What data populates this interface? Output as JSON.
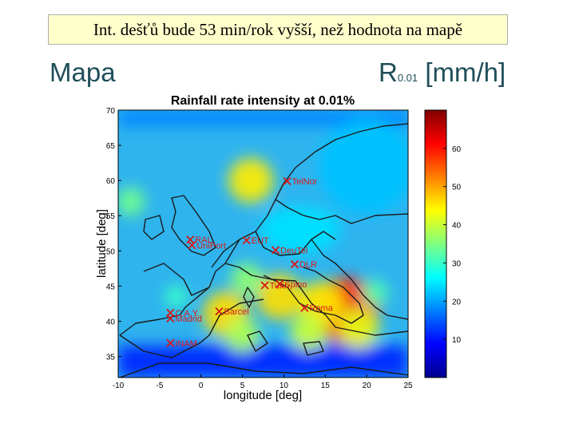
{
  "banner": {
    "text": "Int. dešťů bude 53 min/rok vyšší, než hodnota na mapě"
  },
  "heading_left": "Mapa",
  "heading_right": {
    "main": "R",
    "sub": "0.01",
    "unit": "[mm/h]"
  },
  "colors": {
    "low": "#0a1a9a",
    "mid": "#2fd4f0",
    "high": "#ffe000",
    "max": "#d01000",
    "marker": "#d81a1a",
    "heading": "#1f4e5a"
  },
  "chart_data": {
    "type": "heatmap",
    "title": "Rainfall rate intensity at 0.01%",
    "xlabel": "longitude [deg]",
    "ylabel": "latitude [deg]",
    "xlim": [
      -10,
      25
    ],
    "ylim": [
      32,
      70
    ],
    "x_ticks": [
      "-10",
      "-5",
      "0",
      "5",
      "10",
      "15",
      "20",
      "25"
    ],
    "y_ticks": [
      "35",
      "40",
      "45",
      "50",
      "55",
      "60",
      "65",
      "70"
    ],
    "colorbar": {
      "range": [
        0,
        70
      ],
      "ticks": [
        "10",
        "20",
        "30",
        "40",
        "50",
        "60"
      ]
    },
    "stations": [
      {
        "label": "TelNor",
        "lon": 10.4,
        "lat": 59.9
      },
      {
        "label": "RAL",
        "lon": -1.3,
        "lat": 51.6
      },
      {
        "label": "UniPort",
        "lon": -1.1,
        "lat": 50.8
      },
      {
        "label": "EUT",
        "lon": 5.5,
        "lat": 51.5
      },
      {
        "label": "DeuTel",
        "lon": 9.0,
        "lat": 50.1
      },
      {
        "label": "DLR",
        "lon": 11.3,
        "lat": 48.1
      },
      {
        "label": "Turin",
        "lon": 7.7,
        "lat": 45.1
      },
      {
        "label": "Spino",
        "lon": 9.5,
        "lat": 45.3
      },
      {
        "label": "C.A.Y.",
        "lon": -3.7,
        "lat": 41.2
      },
      {
        "label": "Madrid",
        "lon": -3.7,
        "lat": 40.4
      },
      {
        "label": "Barcel",
        "lon": 2.2,
        "lat": 41.4
      },
      {
        "label": "Roma",
        "lon": 12.5,
        "lat": 41.9
      },
      {
        "label": "INAM",
        "lon": -3.7,
        "lat": 36.9
      }
    ],
    "hotspots": [
      {
        "lon": 17.5,
        "lat": 41.5,
        "value": 60
      },
      {
        "lon": 14.5,
        "lat": 42.5,
        "value": 45
      },
      {
        "lon": 9.5,
        "lat": 43.5,
        "value": 46
      },
      {
        "lon": 3.0,
        "lat": 41.0,
        "value": 46
      },
      {
        "lon": 5.0,
        "lat": 38.0,
        "value": 38
      },
      {
        "lon": 13.0,
        "lat": 38.5,
        "value": 40
      },
      {
        "lon": 19.0,
        "lat": 39.0,
        "value": 42
      },
      {
        "lon": 6.0,
        "lat": 60.0,
        "value": 45
      },
      {
        "lon": -8.5,
        "lat": 57.0,
        "value": 34
      },
      {
        "lon": 5.5,
        "lat": 46.0,
        "value": 36
      },
      {
        "lon": -3.0,
        "lat": 43.5,
        "value": 30
      },
      {
        "lon": 21.0,
        "lat": 44.0,
        "value": 32
      }
    ]
  }
}
